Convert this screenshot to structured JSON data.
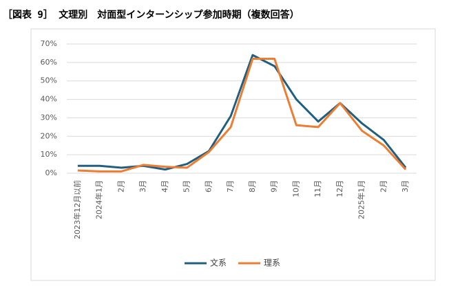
{
  "chart_data": {
    "type": "line",
    "title": "［図表 9］ 文理別　対面型インターンシップ参加時期（複数回答）",
    "categories": [
      "2023年12月以前",
      "2024年1月",
      "2月",
      "3月",
      "4月",
      "5月",
      "6月",
      "7月",
      "8月",
      "9月",
      "10月",
      "11月",
      "12月",
      "2025年1月",
      "2月",
      "3月"
    ],
    "series": [
      {
        "name": "文系",
        "color": "#215f80",
        "values": [
          4,
          4,
          3,
          4,
          2,
          5,
          12,
          31,
          64,
          58,
          40,
          28,
          38,
          27,
          18,
          3
        ]
      },
      {
        "name": "理系",
        "color": "#ed7d31",
        "values": [
          1.5,
          1,
          1,
          4.5,
          3.5,
          3,
          11.5,
          25,
          62,
          62,
          26,
          25,
          38,
          23,
          15,
          2
        ]
      }
    ],
    "ylim": [
      0,
      70
    ],
    "yticks": [
      {
        "value": 0,
        "label": "0%"
      },
      {
        "value": 10,
        "label": "10%"
      },
      {
        "value": 20,
        "label": "20%"
      },
      {
        "value": 30,
        "label": "30%"
      },
      {
        "value": 40,
        "label": "40%"
      },
      {
        "value": 50,
        "label": "50%"
      },
      {
        "value": 60,
        "label": "60%"
      },
      {
        "value": 70,
        "label": "70%"
      }
    ],
    "grid": true
  }
}
